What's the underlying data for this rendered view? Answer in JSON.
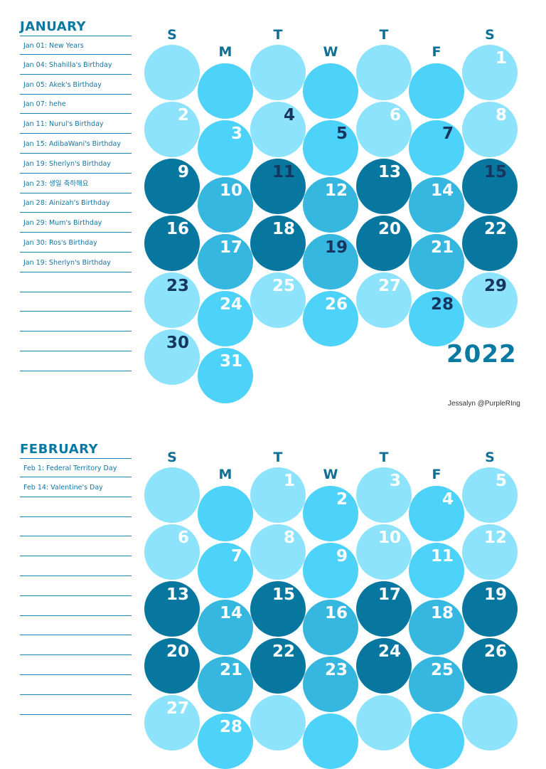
{
  "colors": {
    "light": "#8ce3fb",
    "bright": "#4dd2fa",
    "mid": "#35b7e0",
    "dark": "#0777a0",
    "accent": "#0b7aa3"
  },
  "weekday_letters": [
    "S",
    "M",
    "T",
    "W",
    "T",
    "F",
    "S"
  ],
  "january": {
    "title": "JANUARY",
    "events": [
      "Jan 01: New Years",
      "Jan 04: Shahilla's Birthday",
      "Jan 05: Akek's Birthday",
      "Jan 07: hehe",
      "Jan 11: Nurul's Birthday",
      "Jan 15: AdibaWani's Birthday",
      "Jan 19: Sherlyn's Birthday",
      "Jan 23: 생일 축하해요",
      "Jan 28: Ainizah's Birthday",
      "Jan 29: Mum's Birthday",
      "Jan 30: Ros's Birthday",
      "Jan 19: Sherlyn's Birthday",
      "",
      "",
      "",
      "",
      ""
    ],
    "dates": [
      "",
      "",
      "",
      "",
      "",
      "",
      "1",
      "2",
      "3",
      "4",
      "5",
      "6",
      "7",
      "8",
      "9",
      "10",
      "11",
      "12",
      "13",
      "14",
      "15",
      "16",
      "17",
      "18",
      "19",
      "20",
      "21",
      "22",
      "23",
      "24",
      "25",
      "26",
      "27",
      "28",
      "29",
      "30",
      "31"
    ],
    "dark_dates": [
      "4",
      "5",
      "7",
      "11",
      "15",
      "19",
      "23",
      "28",
      "29",
      "30"
    ],
    "year": "2022",
    "credit": "Jessalyn @PurpleRIng"
  },
  "february": {
    "title": "FEBRUARY",
    "events": [
      "Feb 1: Federal Territory Day",
      "Feb 14: Valentine's Day",
      "",
      "",
      "",
      "",
      "",
      "",
      "",
      "",
      "",
      "",
      ""
    ],
    "dates": [
      "",
      "",
      "1",
      "2",
      "3",
      "4",
      "5",
      "6",
      "7",
      "8",
      "9",
      "10",
      "11",
      "12",
      "13",
      "14",
      "15",
      "16",
      "17",
      "18",
      "19",
      "20",
      "21",
      "22",
      "23",
      "24",
      "25",
      "26",
      "27",
      "28",
      "",
      "",
      "",
      "",
      ""
    ],
    "dark_dates": []
  }
}
